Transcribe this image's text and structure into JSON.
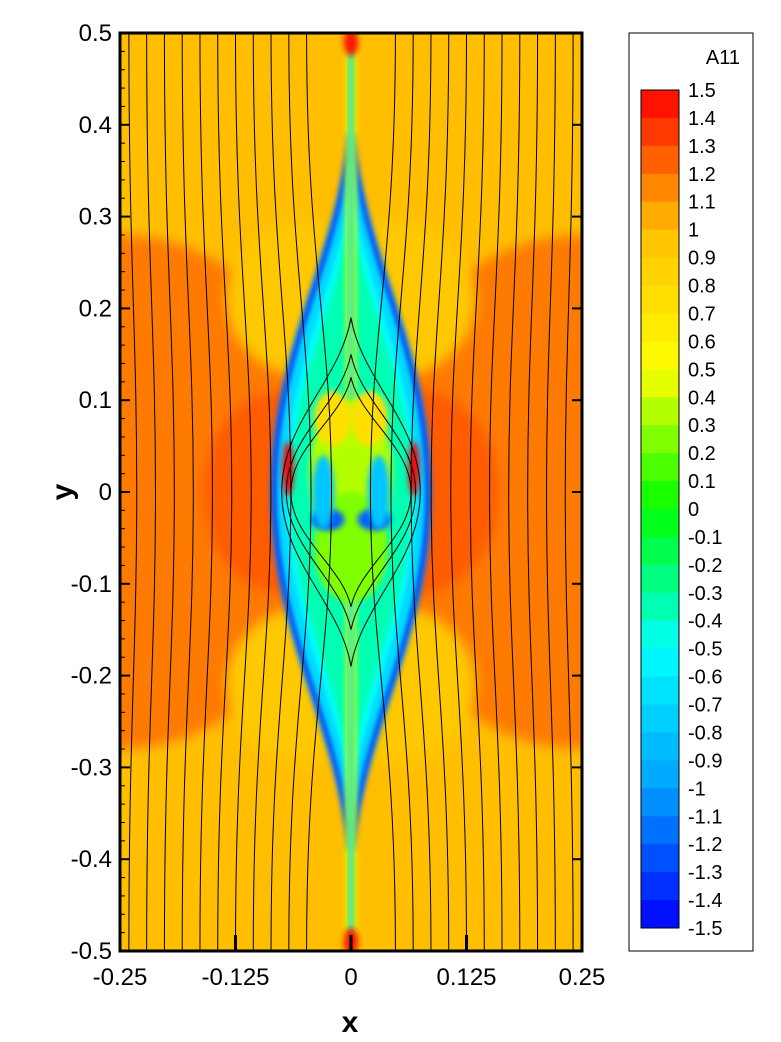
{
  "chart_data": {
    "type": "heatmap",
    "title": "",
    "xlabel": "x",
    "ylabel": "y",
    "xlim": [
      -0.25,
      0.25
    ],
    "ylim": [
      -0.5,
      0.5
    ],
    "x_ticks": [
      -0.25,
      -0.125,
      0,
      0.125,
      0.25
    ],
    "x_tick_labels": [
      "-0.25",
      "-0.125",
      "0",
      "0.125",
      "0.25"
    ],
    "y_ticks": [
      0.5,
      0.4,
      0.3,
      0.2,
      0.1,
      0,
      -0.1,
      -0.2,
      -0.3,
      -0.4,
      -0.5
    ],
    "y_tick_labels": [
      "0.5",
      "0.4",
      "0.3",
      "0.2",
      "0.1",
      "0",
      "-0.1",
      "-0.2",
      "-0.3",
      "-0.4",
      "-0.5"
    ],
    "colorbar": {
      "title": "A11",
      "min": -1.5,
      "max": 1.5,
      "step": 0.1,
      "labels": [
        "1.5",
        "1.4",
        "1.3",
        "1.2",
        "1.1",
        "1",
        "0.9",
        "0.8",
        "0.7",
        "0.6",
        "0.5",
        "0.4",
        "0.3",
        "0.2",
        "0.1",
        "0",
        "-0.1",
        "-0.2",
        "-0.3",
        "-0.4",
        "-0.5",
        "-0.6",
        "-0.7",
        "-0.8",
        "-0.9",
        "-1",
        "-1.1",
        "-1.2",
        "-1.3",
        "-1.4",
        "-1.5"
      ],
      "colormap": [
        "#0000ff",
        "#00a0ff",
        "#00ffff",
        "#00ff00",
        "#ffff00",
        "#ffbf00",
        "#ff0000"
      ]
    },
    "background_value": 1.05,
    "legend_position": "right",
    "grid": false,
    "overlay": "streamlines (black)"
  }
}
